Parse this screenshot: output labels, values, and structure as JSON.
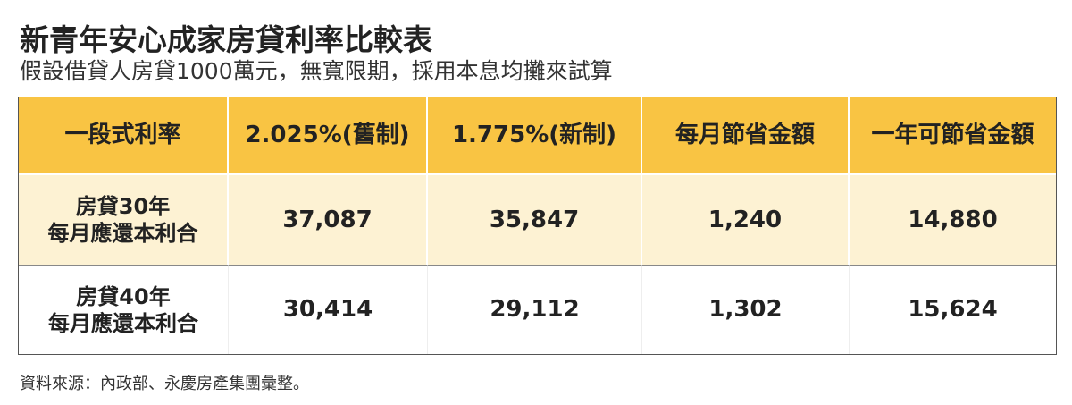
{
  "header": {
    "title": "新青年安心成家房貸利率比較表",
    "subtitle": "假設借貸人房貸1000萬元，無寬限期，採用本息均攤來試算"
  },
  "table": {
    "columns": [
      "一段式利率",
      "2.025%(舊制)",
      "1.775%(新制)",
      "每月節省金額",
      "一年可節省金額"
    ],
    "rows": [
      {
        "label": [
          "房貸30年",
          "每月應還本利合"
        ],
        "cells": [
          "37,087",
          "35,847",
          "1,240",
          "14,880"
        ]
      },
      {
        "label": [
          "房貸40年",
          "每月應還本利合"
        ],
        "cells": [
          "30,414",
          "29,112",
          "1,302",
          "15,624"
        ]
      }
    ]
  },
  "footer": {
    "source": "資料來源：內政部、永慶房產集團彙整。"
  }
}
